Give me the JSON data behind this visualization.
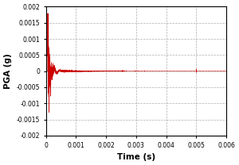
{
  "title": "",
  "xlabel": "Time (s)",
  "ylabel": "PGA (g)",
  "xlim": [
    0,
    0.006
  ],
  "ylim": [
    -0.002,
    0.002
  ],
  "xticks": [
    0,
    0.001,
    0.002,
    0.003,
    0.004,
    0.005,
    0.006
  ],
  "yticks": [
    -0.002,
    -0.0015,
    -0.001,
    -0.0005,
    0,
    0.0005,
    0.001,
    0.0015,
    0.002
  ],
  "line_color": "#cc0000",
  "linewidth": 0.4,
  "grid_color": "#999999",
  "grid_linestyle": "--",
  "background_color": "#ffffff",
  "spike_t": 8e-05,
  "spike_max": 0.0017,
  "spike_min": -0.00145
}
